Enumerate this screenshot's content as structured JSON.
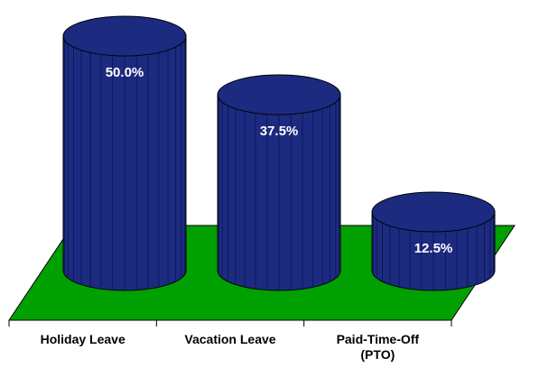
{
  "chart_data": {
    "type": "bar",
    "categories": [
      "Holiday Leave",
      "Vacation Leave",
      "Paid-Time-Off (PTO)"
    ],
    "values": [
      50,
      37.5,
      12.5
    ],
    "value_labels": [
      "50.0%",
      "37.5%",
      "12.5%"
    ],
    "color": "#1c2b80",
    "floor_color": "#00a000"
  }
}
